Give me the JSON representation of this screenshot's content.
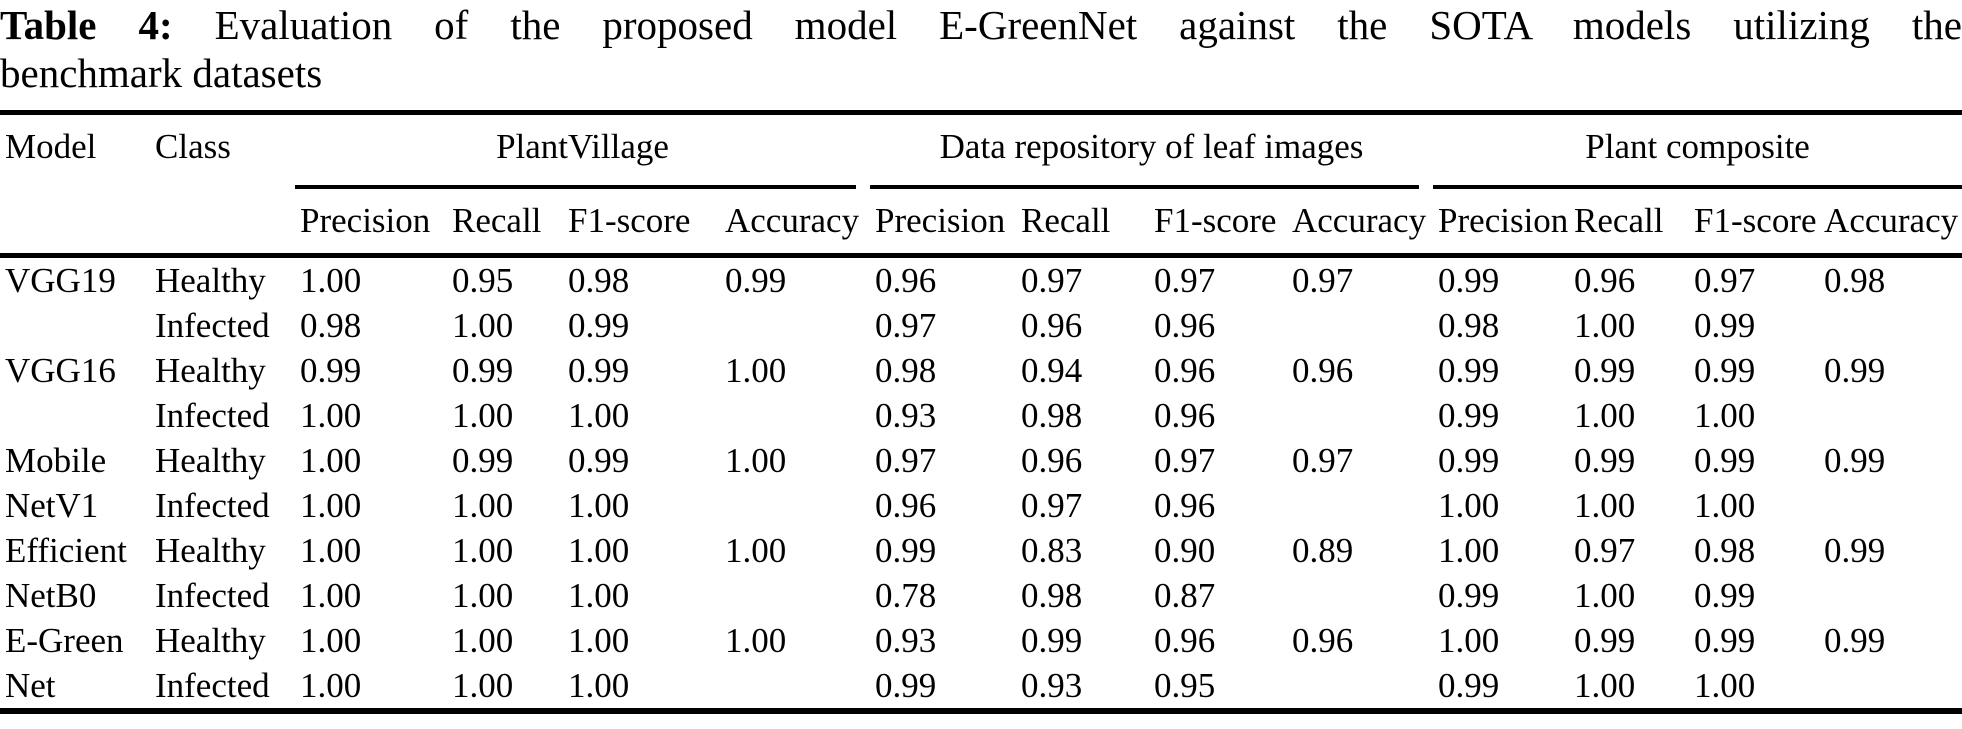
{
  "caption": {
    "label": "Table 4:",
    "line1_rest": "Evaluation of the proposed model E-GreenNet against the SOTA models utilizing the",
    "line2": "benchmark datasets"
  },
  "colors": {
    "text": "#000000",
    "background": "#ffffff",
    "rule": "#000000"
  },
  "table": {
    "model_header": "Model",
    "class_header": "Class",
    "groups": [
      {
        "label": "PlantVillage",
        "metrics": [
          "Precision",
          "Recall",
          "F1-score",
          "Accuracy"
        ]
      },
      {
        "label": "Data repository of leaf images",
        "metrics": [
          "Precision",
          "Recall",
          "F1-score",
          "Accuracy"
        ]
      },
      {
        "label": "Plant composite",
        "metrics": [
          "Precision",
          "Recall",
          "F1-score",
          "Accuracy"
        ]
      }
    ],
    "rows": [
      {
        "model": "VGG19",
        "class": "Healthy",
        "pv": [
          "1.00",
          "0.95",
          "0.98",
          "0.99"
        ],
        "dr": [
          "0.96",
          "0.97",
          "0.97",
          "0.97"
        ],
        "pc": [
          "0.99",
          "0.96",
          "0.97",
          "0.98"
        ]
      },
      {
        "model": "",
        "class": "Infected",
        "pv": [
          "0.98",
          "1.00",
          "0.99",
          ""
        ],
        "dr": [
          "0.97",
          "0.96",
          "0.96",
          ""
        ],
        "pc": [
          "0.98",
          "1.00",
          "0.99",
          ""
        ]
      },
      {
        "model": "VGG16",
        "class": "Healthy",
        "pv": [
          "0.99",
          "0.99",
          "0.99",
          "1.00"
        ],
        "dr": [
          "0.98",
          "0.94",
          "0.96",
          "0.96"
        ],
        "pc": [
          "0.99",
          "0.99",
          "0.99",
          "0.99"
        ]
      },
      {
        "model": "",
        "class": "Infected",
        "pv": [
          "1.00",
          "1.00",
          "1.00",
          ""
        ],
        "dr": [
          "0.93",
          "0.98",
          "0.96",
          ""
        ],
        "pc": [
          "0.99",
          "1.00",
          "1.00",
          ""
        ]
      },
      {
        "model": "Mobile",
        "class": "Healthy",
        "pv": [
          "1.00",
          "0.99",
          "0.99",
          "1.00"
        ],
        "dr": [
          "0.97",
          "0.96",
          "0.97",
          "0.97"
        ],
        "pc": [
          "0.99",
          "0.99",
          "0.99",
          "0.99"
        ]
      },
      {
        "model": "NetV1",
        "class": "Infected",
        "pv": [
          "1.00",
          "1.00",
          "1.00",
          ""
        ],
        "dr": [
          "0.96",
          "0.97",
          "0.96",
          ""
        ],
        "pc": [
          "1.00",
          "1.00",
          "1.00",
          ""
        ]
      },
      {
        "model": "Efficient",
        "class": "Healthy",
        "pv": [
          "1.00",
          "1.00",
          "1.00",
          "1.00"
        ],
        "dr": [
          "0.99",
          "0.83",
          "0.90",
          "0.89"
        ],
        "pc": [
          "1.00",
          "0.97",
          "0.98",
          "0.99"
        ]
      },
      {
        "model": "NetB0",
        "class": "Infected",
        "pv": [
          "1.00",
          "1.00",
          "1.00",
          ""
        ],
        "dr": [
          "0.78",
          "0.98",
          "0.87",
          ""
        ],
        "pc": [
          "0.99",
          "1.00",
          "0.99",
          ""
        ]
      },
      {
        "model": "E-Green",
        "class": "Healthy",
        "pv": [
          "1.00",
          "1.00",
          "1.00",
          "1.00"
        ],
        "dr": [
          "0.93",
          "0.99",
          "0.96",
          "0.96"
        ],
        "pc": [
          "1.00",
          "0.99",
          "0.99",
          "0.99"
        ]
      },
      {
        "model": "Net",
        "class": "Infected",
        "pv": [
          "1.00",
          "1.00",
          "1.00",
          ""
        ],
        "dr": [
          "0.99",
          "0.93",
          "0.95",
          ""
        ],
        "pc": [
          "0.99",
          "1.00",
          "1.00",
          ""
        ]
      }
    ]
  }
}
